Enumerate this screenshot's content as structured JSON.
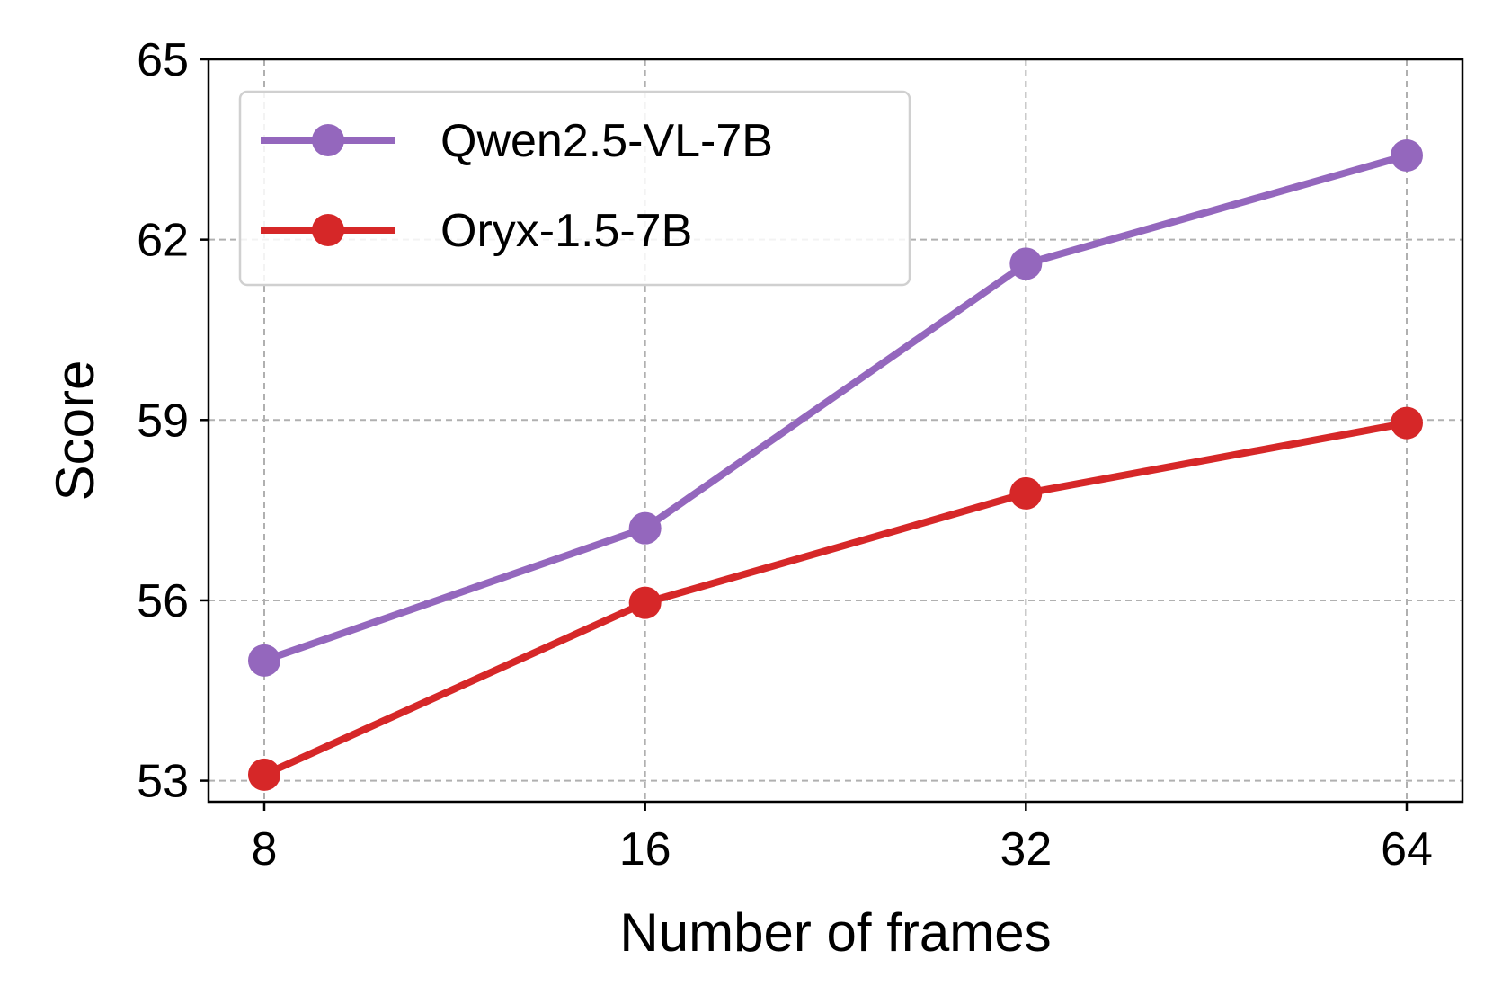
{
  "chart_data": {
    "type": "line",
    "xlabel": "Number of frames",
    "ylabel": "Score",
    "categories": [
      "8",
      "16",
      "32",
      "64"
    ],
    "x_scale": "log2",
    "ylim": [
      52.65,
      65
    ],
    "yticks": [
      53,
      56,
      59,
      62,
      65
    ],
    "grid": true,
    "legend_position": "top-left",
    "series": [
      {
        "name": "Qwen2.5-VL-7B",
        "color": "#9467bd",
        "marker": "circle",
        "values": [
          55.0,
          57.2,
          61.6,
          63.4
        ]
      },
      {
        "name": "Oryx-1.5-7B",
        "color": "#d62728",
        "marker": "circle",
        "values": [
          53.1,
          55.96,
          57.78,
          58.95
        ]
      }
    ]
  }
}
